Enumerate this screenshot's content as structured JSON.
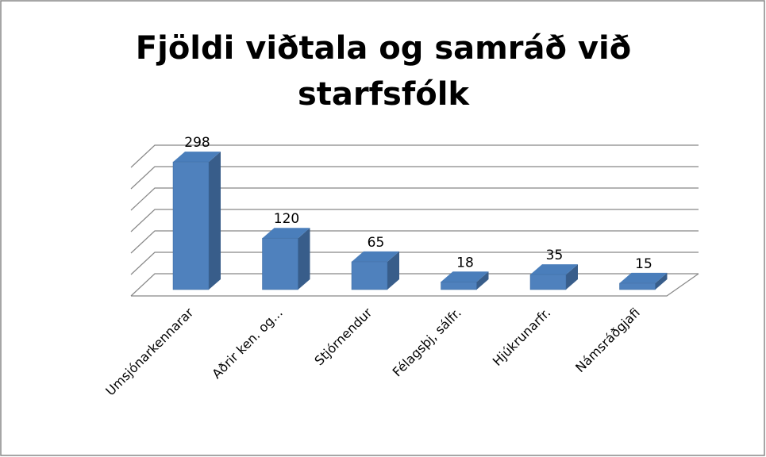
{
  "chart_data": {
    "type": "bar3d",
    "title": "Fjöldi viðtala og samráð við starfsfólk",
    "categories": [
      "Umsjónarkennarar",
      "Aðrir ken. og...",
      "Stjórnendur",
      "Félagsþj, sálfr.",
      "Hjúkrunarfr.",
      "Námsráðgjafi"
    ],
    "values": [
      298,
      120,
      65,
      18,
      35,
      15
    ],
    "color": "#4f81bd",
    "ylim": [
      0,
      300
    ],
    "yticks": [
      0,
      50,
      100,
      150,
      200,
      250,
      300
    ],
    "grid": true
  }
}
